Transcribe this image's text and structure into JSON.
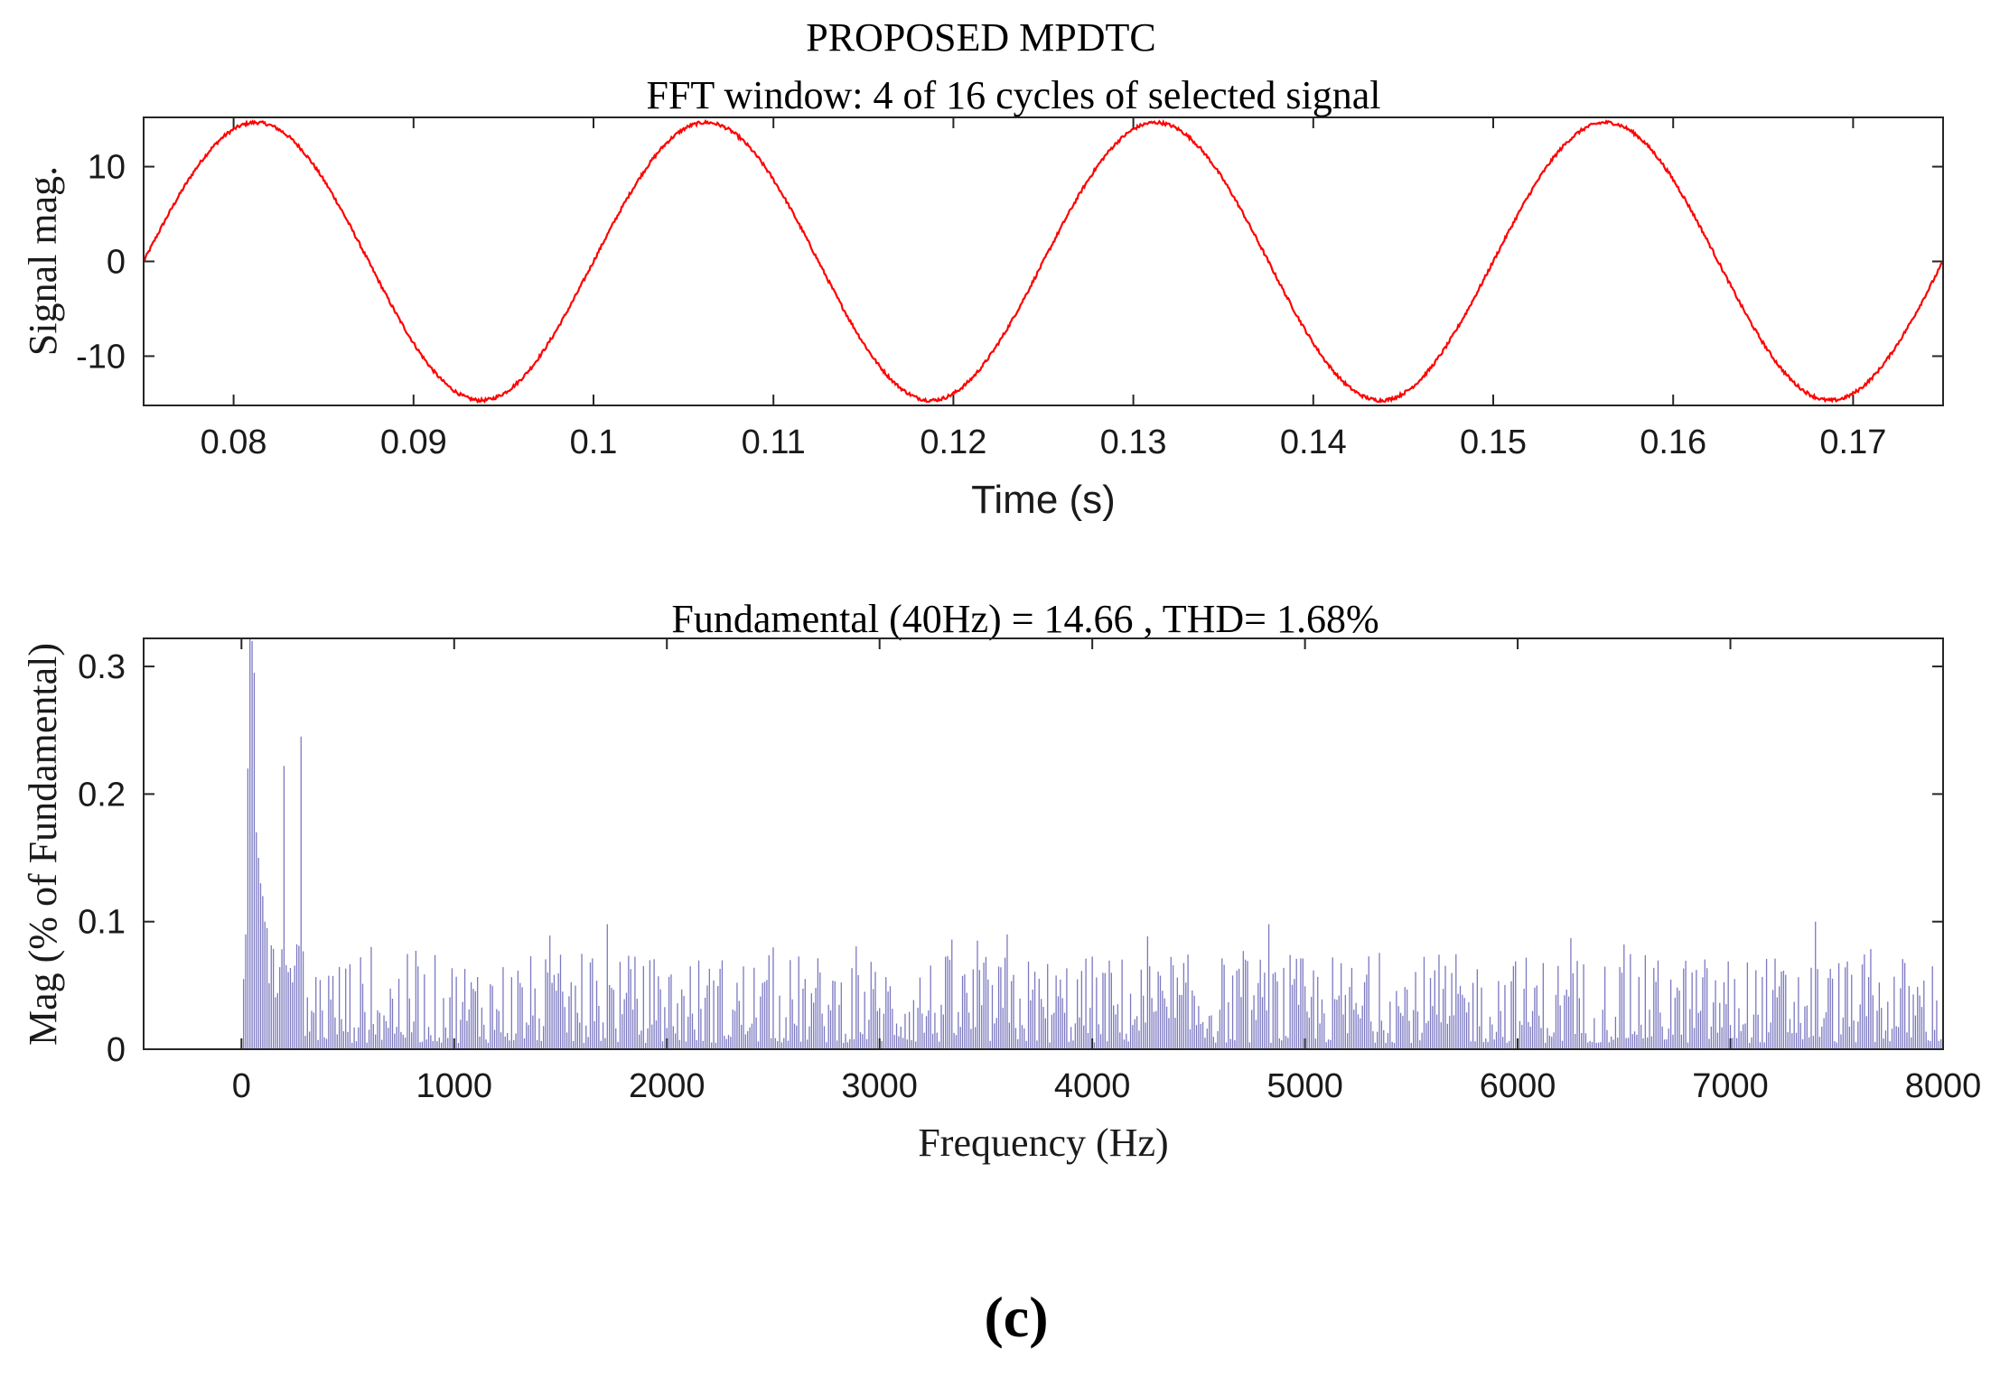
{
  "figure_title": "PROPOSED MPDTC",
  "caption": "(c)",
  "colors": {
    "signal": "#ff0000",
    "bars": "#7b78c0",
    "axis": "#262626"
  },
  "chart_data": [
    {
      "type": "line",
      "title": "FFT window: 4 of 16 cycles of selected signal",
      "xlabel": "Time (s)",
      "ylabel": "Signal mag.",
      "xlim": [
        0.075,
        0.175
      ],
      "ylim": [
        -15.2,
        15.2
      ],
      "xticks": [
        0.08,
        0.09,
        0.1,
        0.11,
        0.12,
        0.13,
        0.14,
        0.15,
        0.16,
        0.17
      ],
      "xtick_labels": [
        "0.08",
        "0.09",
        "0.1",
        "0.11",
        "0.12",
        "0.13",
        "0.14",
        "0.15",
        "0.16",
        "0.17"
      ],
      "yticks": [
        -10,
        0,
        10
      ],
      "ytick_labels": [
        "-10",
        "0",
        "10"
      ],
      "series": [
        {
          "name": "signal",
          "amplitude": 14.66,
          "frequency_hz": 40,
          "phase_start_s": 0.075
        }
      ]
    },
    {
      "type": "bar",
      "title": "Fundamental (40Hz) = 14.66 , THD= 1.68%",
      "xlabel": "Frequency (Hz)",
      "ylabel": "Mag (% of Fundamental)",
      "xlim": [
        -460,
        8000
      ],
      "ylim": [
        0,
        0.322
      ],
      "xticks": [
        0,
        1000,
        2000,
        3000,
        4000,
        5000,
        6000,
        7000,
        8000
      ],
      "xtick_labels": [
        "0",
        "1000",
        "2000",
        "3000",
        "4000",
        "5000",
        "6000",
        "7000",
        "8000"
      ],
      "yticks": [
        0,
        0.1,
        0.2,
        0.3
      ],
      "ytick_labels": [
        "0",
        "0.1",
        "0.2",
        "0.3"
      ],
      "bin_spacing_hz": 10,
      "series": [
        {
          "name": "spectrum",
          "notable_bins": [
            {
              "x": 10,
              "y": 0.055
            },
            {
              "x": 20,
              "y": 0.09
            },
            {
              "x": 30,
              "y": 0.22
            },
            {
              "x": 40,
              "y": 0.322
            },
            {
              "x": 50,
              "y": 0.32
            },
            {
              "x": 60,
              "y": 0.295
            },
            {
              "x": 70,
              "y": 0.17
            },
            {
              "x": 80,
              "y": 0.15
            },
            {
              "x": 90,
              "y": 0.13
            },
            {
              "x": 100,
              "y": 0.12
            },
            {
              "x": 110,
              "y": 0.1
            },
            {
              "x": 120,
              "y": 0.095
            },
            {
              "x": 200,
              "y": 0.222
            },
            {
              "x": 280,
              "y": 0.245
            },
            {
              "x": 1720,
              "y": 0.098
            },
            {
              "x": 3600,
              "y": 0.09
            },
            {
              "x": 4830,
              "y": 0.098
            },
            {
              "x": 7400,
              "y": 0.1
            },
            {
              "x": 8000,
              "y": 0.082
            }
          ],
          "baseline_range": [
            0.005,
            0.075
          ]
        }
      ]
    }
  ]
}
